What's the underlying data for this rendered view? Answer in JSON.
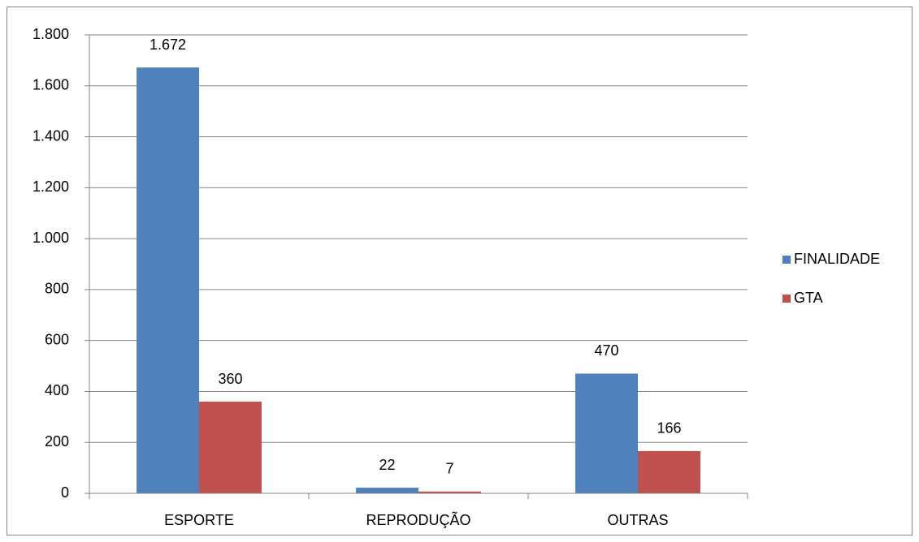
{
  "chart_data": {
    "type": "bar",
    "categories": [
      "ESPORTE",
      "REPRODUÇÃO",
      "OUTRAS"
    ],
    "series": [
      {
        "name": "FINALIDADE",
        "color": "#4f81bd",
        "values": [
          1672,
          22,
          470
        ],
        "value_labels": [
          "1.672",
          "22",
          "470"
        ]
      },
      {
        "name": "GTA",
        "color": "#c0504d",
        "values": [
          360,
          7,
          166
        ]
      }
    ],
    "ylim": [
      0,
      1800
    ],
    "yticks": [
      0,
      200,
      400,
      600,
      800,
      {
        "value": 1000,
        "label": "1.000"
      },
      {
        "value": 1200,
        "label": "1.200"
      },
      {
        "value": 1400,
        "label": "1.400"
      },
      {
        "value": 1600,
        "label": "1.600"
      },
      {
        "value": 1800,
        "label": "1.800"
      }
    ],
    "grid": true,
    "legend": "right"
  }
}
